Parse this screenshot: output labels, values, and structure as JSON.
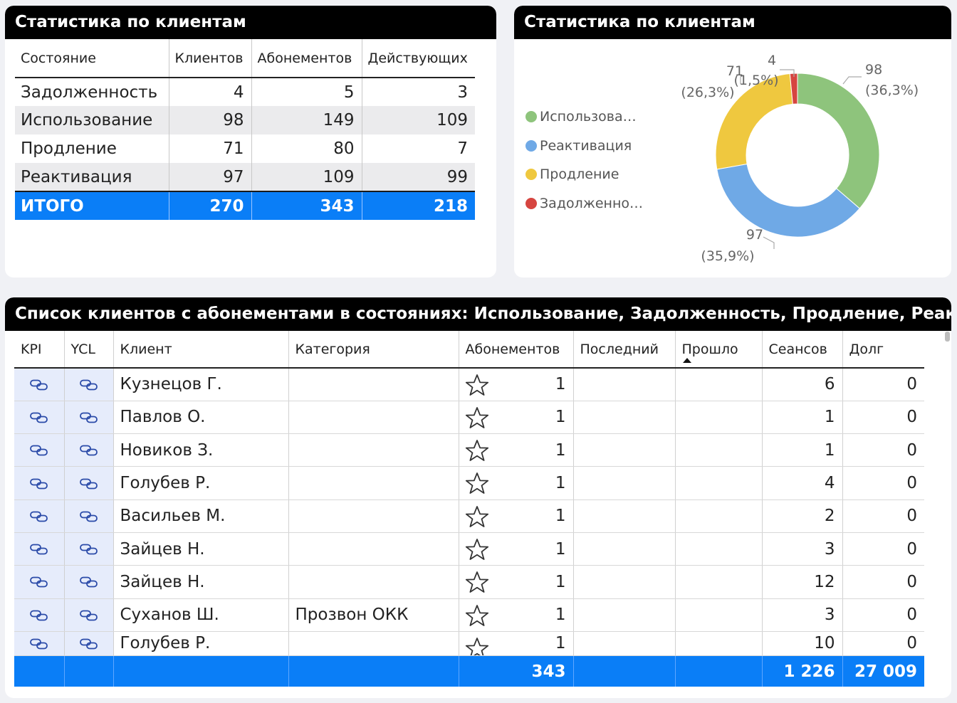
{
  "stats_card": {
    "title": "Статистика по клиентам",
    "headers": [
      "Состояние",
      "Клиентов",
      "Абонементов",
      "Действующих"
    ],
    "rows": [
      {
        "state": "Задолженность",
        "clients": "4",
        "subs": "5",
        "active": "3"
      },
      {
        "state": "Использование",
        "clients": "98",
        "subs": "149",
        "active": "109"
      },
      {
        "state": "Продление",
        "clients": "71",
        "subs": "80",
        "active": "7"
      },
      {
        "state": "Реактивация",
        "clients": "97",
        "subs": "109",
        "active": "99"
      }
    ],
    "total": {
      "state": "ИТОГО",
      "clients": "270",
      "subs": "343",
      "active": "218"
    }
  },
  "donut_card": {
    "title": "Статистика по клиентам",
    "legend": [
      "Использова…",
      "Реактивация",
      "Продление",
      "Задолженно…"
    ],
    "chart_data": {
      "type": "pie",
      "categories": [
        "Использование",
        "Реактивация",
        "Продление",
        "Задолженность"
      ],
      "values": [
        98,
        97,
        71,
        4
      ],
      "labels": [
        "98",
        "97",
        "71",
        "4"
      ],
      "percents": [
        "(36,3%)",
        "(35,9%)",
        "(26,3%)",
        "(1,5%)"
      ],
      "colors": [
        "#8ec47c",
        "#6fa9e6",
        "#efc83f",
        "#d64540"
      ],
      "legend_position": "left"
    }
  },
  "list_card": {
    "title": "Список клиентов с абонементами в состояниях: Использование, Задолженность, Продление, Реактивация",
    "headers": [
      "KPI",
      "YCL",
      "Клиент",
      "Категория",
      "Абонементов",
      "Последний",
      "Прошло",
      "Сеансов",
      "Долг"
    ],
    "rows": [
      {
        "client": "Кузнецов Г.",
        "category": "",
        "subs": "1",
        "last": "",
        "passed": "",
        "sessions": "6",
        "debt": "0"
      },
      {
        "client": "Павлов О.",
        "category": "",
        "subs": "1",
        "last": "",
        "passed": "",
        "sessions": "1",
        "debt": "0"
      },
      {
        "client": "Новиков З.",
        "category": "",
        "subs": "1",
        "last": "",
        "passed": "",
        "sessions": "1",
        "debt": "0"
      },
      {
        "client": "Голубев Р.",
        "category": "",
        "subs": "1",
        "last": "",
        "passed": "",
        "sessions": "4",
        "debt": "0"
      },
      {
        "client": "Васильев М.",
        "category": "",
        "subs": "1",
        "last": "",
        "passed": "",
        "sessions": "2",
        "debt": "0"
      },
      {
        "client": "Зайцев Н.",
        "category": "",
        "subs": "1",
        "last": "",
        "passed": "",
        "sessions": "3",
        "debt": "0"
      },
      {
        "client": "Зайцев Н.",
        "category": "",
        "subs": "1",
        "last": "",
        "passed": "",
        "sessions": "12",
        "debt": "0"
      },
      {
        "client": "Суханов Ш.",
        "category": "Прозвон ОКК",
        "subs": "1",
        "last": "",
        "passed": "",
        "sessions": "3",
        "debt": "0"
      },
      {
        "client": "Голубев Р.",
        "category": "",
        "subs": "1",
        "last": "",
        "passed": "",
        "sessions": "10",
        "debt": "0"
      }
    ],
    "total": {
      "subs": "343",
      "sessions": "1 226",
      "debt": "27 009"
    },
    "icons": {
      "kpi": "link-icon",
      "ycl": "link-icon",
      "favorite": "star-icon",
      "sort": "sort-ascending-icon"
    }
  }
}
